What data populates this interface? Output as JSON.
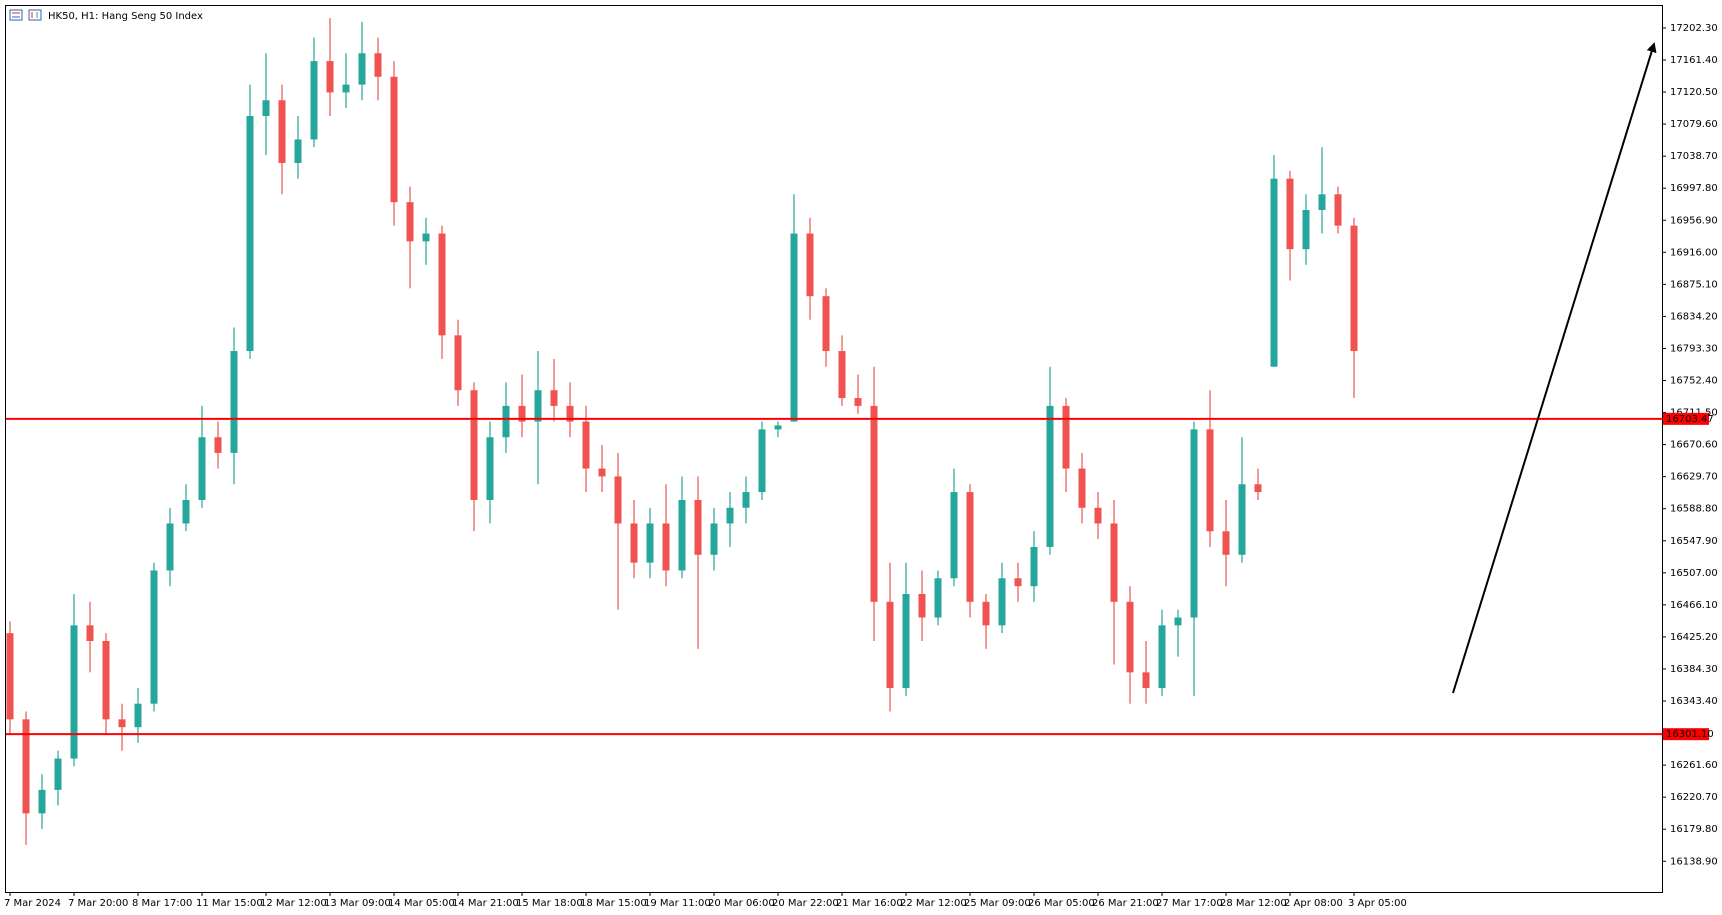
{
  "chart_data": {
    "type": "candlestick",
    "title": "HK50, H1:  Hang Seng 50 Index",
    "categories": [
      "7 Mar 2024",
      null,
      null,
      null,
      "7 Mar 20:00",
      null,
      null,
      null,
      "8 Mar 17:00",
      null,
      null,
      null,
      "11 Mar 15:00",
      null,
      null,
      null,
      "12 Mar 12:00",
      null,
      null,
      null,
      "13 Mar 09:00",
      null,
      null,
      null,
      "14 Mar 05:00",
      null,
      null,
      null,
      "14 Mar 21:00",
      null,
      null,
      null,
      "15 Mar 18:00",
      null,
      null,
      null,
      "18 Mar 15:00",
      null,
      null,
      null,
      "19 Mar 11:00",
      null,
      null,
      null,
      "20 Mar 06:00",
      null,
      null,
      null,
      "20 Mar 22:00",
      null,
      null,
      null,
      "21 Mar 16:00",
      null,
      null,
      null,
      "22 Mar 12:00",
      null,
      null,
      null,
      "25 Mar 09:00",
      null,
      null,
      null,
      "26 Mar 05:00",
      null,
      null,
      null,
      "26 Mar 21:00",
      null,
      null,
      null,
      "27 Mar 17:00",
      null,
      null,
      null,
      "28 Mar 12:00",
      null,
      null,
      null,
      "2 Apr 08:00",
      null,
      null,
      null,
      "3 Apr 05:00"
    ],
    "open": [
      16430,
      16320,
      16200,
      16230,
      16270,
      16440,
      16420,
      16320,
      16310,
      16340,
      16510,
      16570,
      16600,
      16680,
      16660,
      16790,
      17090,
      17110,
      17030,
      17060,
      17160,
      17120,
      17130,
      17170,
      17140,
      16980,
      16930,
      16940,
      16810,
      16740,
      16600,
      16680,
      16720,
      16700,
      16740,
      16720,
      16700,
      16640,
      16630,
      16570,
      16520,
      16570,
      16510,
      16600,
      16530,
      16570,
      16590,
      16610,
      16690,
      16700,
      16940,
      16860,
      16790,
      16730,
      16720,
      16470,
      16360,
      16480,
      16450,
      16500,
      16610,
      16470,
      16440,
      16500,
      16490,
      16540,
      16720,
      16640,
      16590,
      16570,
      16470,
      16380,
      16360,
      16440,
      16450,
      16690,
      16560,
      16530,
      16620,
      16770,
      17010,
      16920,
      16970,
      16990,
      16950
    ],
    "high": [
      16445,
      16330,
      16250,
      16280,
      16480,
      16470,
      16430,
      16340,
      16360,
      16520,
      16590,
      16620,
      16720,
      16700,
      16820,
      17130,
      17170,
      17130,
      17090,
      17190,
      17215,
      17170,
      17210,
      17190,
      17160,
      17000,
      16960,
      16950,
      16830,
      16750,
      16700,
      16750,
      16760,
      16790,
      16780,
      16750,
      16720,
      16670,
      16660,
      16600,
      16590,
      16620,
      16630,
      16630,
      16590,
      16610,
      16630,
      16700,
      16700,
      16990,
      16960,
      16870,
      16810,
      16760,
      16770,
      16520,
      16520,
      16510,
      16510,
      16640,
      16620,
      16480,
      16520,
      16520,
      16560,
      16770,
      16730,
      16660,
      16610,
      16600,
      16490,
      16420,
      16460,
      16460,
      16700,
      16740,
      16600,
      16680,
      16640,
      17040,
      17020,
      16990,
      17050,
      17000,
      16960
    ],
    "low": [
      16300,
      16160,
      16180,
      16210,
      16260,
      16380,
      16300,
      16280,
      16290,
      16330,
      16490,
      16560,
      16590,
      16640,
      16620,
      16780,
      17040,
      16990,
      17010,
      17050,
      17090,
      17100,
      17110,
      17110,
      16950,
      16870,
      16900,
      16780,
      16720,
      16560,
      16570,
      16660,
      16680,
      16620,
      16700,
      16680,
      16610,
      16610,
      16460,
      16500,
      16500,
      16490,
      16500,
      16410,
      16510,
      16540,
      16570,
      16600,
      16680,
      16700,
      16830,
      16770,
      16720,
      16710,
      16420,
      16330,
      16350,
      16420,
      16440,
      16490,
      16450,
      16410,
      16430,
      16470,
      16470,
      16530,
      16610,
      16570,
      16550,
      16390,
      16340,
      16340,
      16350,
      16400,
      16350,
      16540,
      16490,
      16520,
      16600,
      16770,
      16880,
      16900,
      16940,
      16940,
      16730
    ],
    "close": [
      16320,
      16200,
      16230,
      16270,
      16440,
      16420,
      16320,
      16310,
      16340,
      16510,
      16570,
      16600,
      16680,
      16660,
      16790,
      17090,
      17110,
      17030,
      17060,
      17160,
      17120,
      17130,
      17170,
      17140,
      16980,
      16930,
      16940,
      16810,
      16740,
      16600,
      16680,
      16720,
      16700,
      16740,
      16720,
      16700,
      16640,
      16630,
      16570,
      16520,
      16570,
      16510,
      16600,
      16530,
      16570,
      16590,
      16610,
      16690,
      16695,
      16940,
      16860,
      16790,
      16730,
      16720,
      16470,
      16360,
      16480,
      16450,
      16500,
      16610,
      16470,
      16440,
      16500,
      16490,
      16540,
      16720,
      16640,
      16590,
      16570,
      16470,
      16380,
      16360,
      16440,
      16450,
      16690,
      16560,
      16530,
      16620,
      16610,
      17010,
      16920,
      16970,
      16990,
      16950,
      16790
    ],
    "up_color": "#26a69a",
    "down_color": "#ef5350",
    "ylim": [
      16099.7,
      17230.3
    ],
    "yticks": [
      {
        "value": 16138.9,
        "label": "16138.90"
      },
      {
        "value": 16179.8,
        "label": "16179.80"
      },
      {
        "value": 16220.7,
        "label": "16220.70"
      },
      {
        "value": 16261.6,
        "label": "16261.60"
      },
      {
        "value": 16343.4,
        "label": "16343.40"
      },
      {
        "value": 16384.3,
        "label": "16384.30"
      },
      {
        "value": 16425.2,
        "label": "16425.20"
      },
      {
        "value": 16466.1,
        "label": "16466.10"
      },
      {
        "value": 16507,
        "label": "16507.00"
      },
      {
        "value": 16547.9,
        "label": "16547.90"
      },
      {
        "value": 16588.8,
        "label": "16588.80"
      },
      {
        "value": 16629.7,
        "label": "16629.70"
      },
      {
        "value": 16670.6,
        "label": "16670.60"
      },
      {
        "value": 16711.5,
        "label": "16711.50"
      },
      {
        "value": 16752.4,
        "label": "16752.40"
      },
      {
        "value": 16793.3,
        "label": "16793.30"
      },
      {
        "value": 16834.2,
        "label": "16834.20"
      },
      {
        "value": 16875.1,
        "label": "16875.10"
      },
      {
        "value": 16916,
        "label": "16916.00"
      },
      {
        "value": 16956.9,
        "label": "16956.90"
      },
      {
        "value": 16997.8,
        "label": "16997.80"
      },
      {
        "value": 17038.7,
        "label": "17038.70"
      },
      {
        "value": 17079.6,
        "label": "17079.60"
      },
      {
        "value": 17120.5,
        "label": "17120.50"
      },
      {
        "value": 17161.4,
        "label": "17161.40"
      },
      {
        "value": 17202.3,
        "label": "17202.30"
      }
    ],
    "hlines": [
      {
        "value": 16703.47,
        "label": "16703.47",
        "color": "#ff0000"
      },
      {
        "value": 16301.1,
        "label": "16301.10",
        "color": "#ff0000"
      }
    ],
    "grid": false
  }
}
